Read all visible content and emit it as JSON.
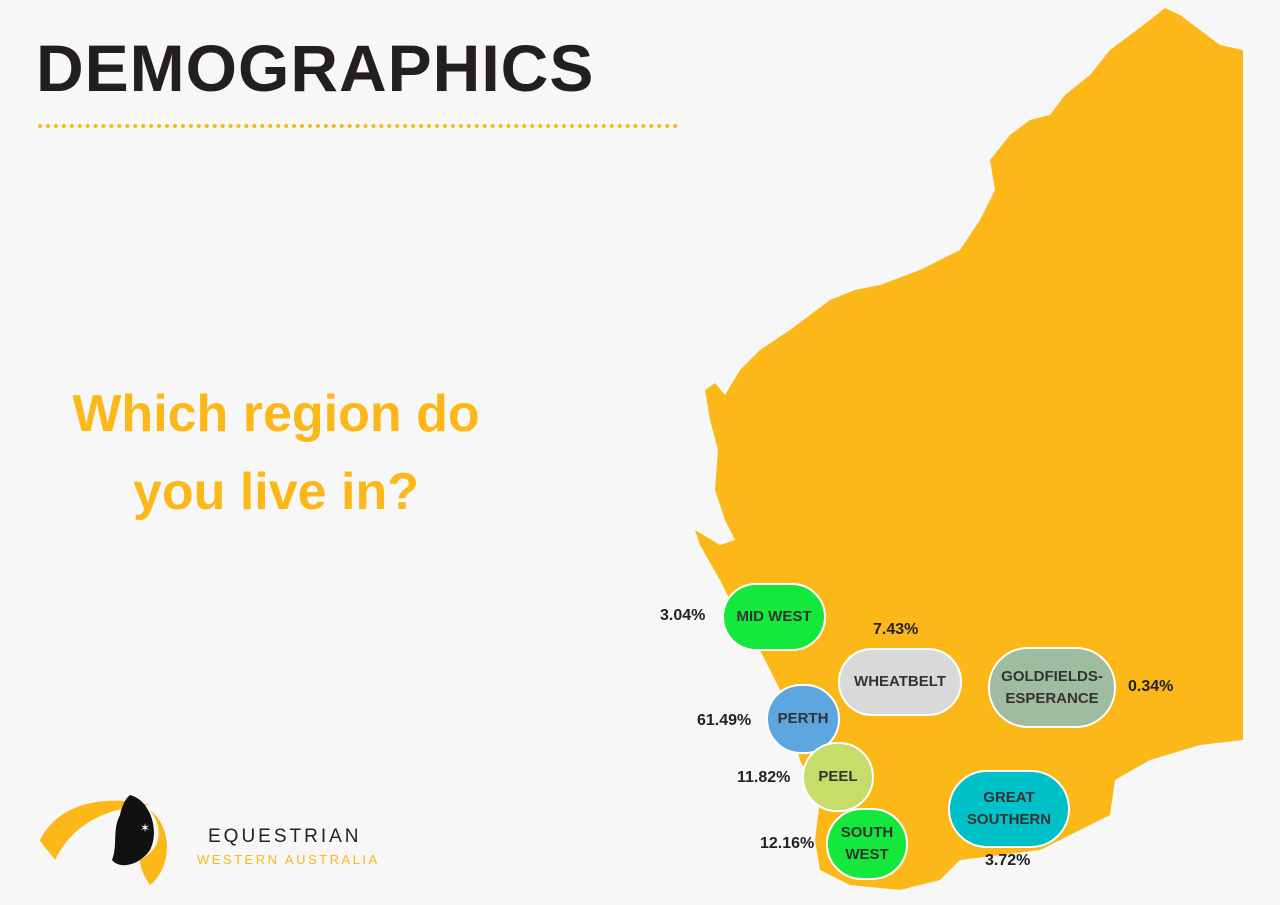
{
  "header": {
    "title": "DEMOGRAPHICS"
  },
  "question": {
    "line1": "Which region do",
    "line2": "you live in?"
  },
  "regions": [
    {
      "label": "MID WEST",
      "percent": "3.04%"
    },
    {
      "label": "WHEATBELT",
      "percent": "7.43%"
    },
    {
      "label": "GOLDFIELDS-\nESPERANCE",
      "percent": "0.34%"
    },
    {
      "label": "PERTH",
      "percent": "61.49%"
    },
    {
      "label": "PEEL",
      "percent": "11.82%"
    },
    {
      "label": "SOUTH\nWEST",
      "percent": "12.16%"
    },
    {
      "label": "GREAT\nSOUTHERN",
      "percent": "3.72%"
    }
  ],
  "logo": {
    "name": "EQUESTRIAN",
    "subtitle": "WESTERN AUSTRALIA"
  }
}
